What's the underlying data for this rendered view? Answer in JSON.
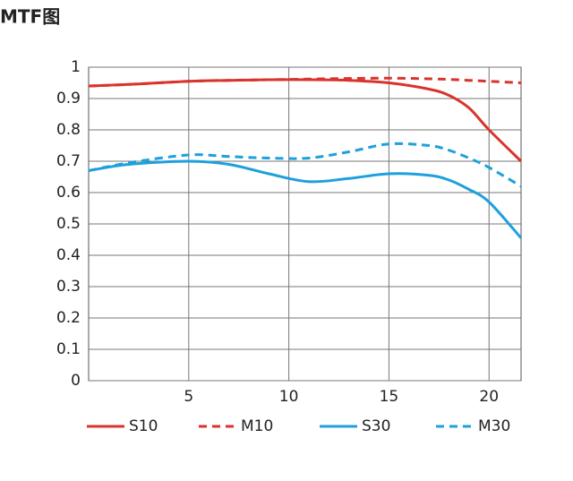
{
  "chart_data": {
    "type": "line",
    "title": "MTF图",
    "x": [
      0,
      2,
      5,
      7,
      9,
      11,
      13,
      15,
      17,
      18,
      19,
      20,
      21.6
    ],
    "series": [
      {
        "name": "S10",
        "color": "#d9342b",
        "style": "solid",
        "values": [
          0.94,
          0.945,
          0.955,
          0.958,
          0.96,
          0.96,
          0.958,
          0.95,
          0.93,
          0.91,
          0.87,
          0.8,
          0.7
        ]
      },
      {
        "name": "M10",
        "color": "#d9342b",
        "style": "dashed",
        "values": [
          0.94,
          0.945,
          0.955,
          0.958,
          0.96,
          0.962,
          0.964,
          0.965,
          0.963,
          0.961,
          0.958,
          0.955,
          0.95
        ]
      },
      {
        "name": "S30",
        "color": "#1ea0dc",
        "style": "solid",
        "values": [
          0.67,
          0.69,
          0.7,
          0.69,
          0.66,
          0.635,
          0.645,
          0.66,
          0.655,
          0.64,
          0.61,
          0.57,
          0.455
        ]
      },
      {
        "name": "M30",
        "color": "#1ea0dc",
        "style": "dashed",
        "values": [
          0.67,
          0.695,
          0.72,
          0.715,
          0.71,
          0.71,
          0.73,
          0.755,
          0.75,
          0.735,
          0.71,
          0.68,
          0.62
        ]
      }
    ],
    "xlim": [
      0,
      21.6
    ],
    "xticks": [
      5,
      10,
      15,
      20
    ],
    "ylim": [
      0,
      1
    ],
    "yticks": [
      0,
      0.1,
      0.2,
      0.3,
      0.4,
      0.5,
      0.6,
      0.7,
      0.8,
      0.9,
      1
    ],
    "grid": true,
    "legend": "bottom"
  }
}
